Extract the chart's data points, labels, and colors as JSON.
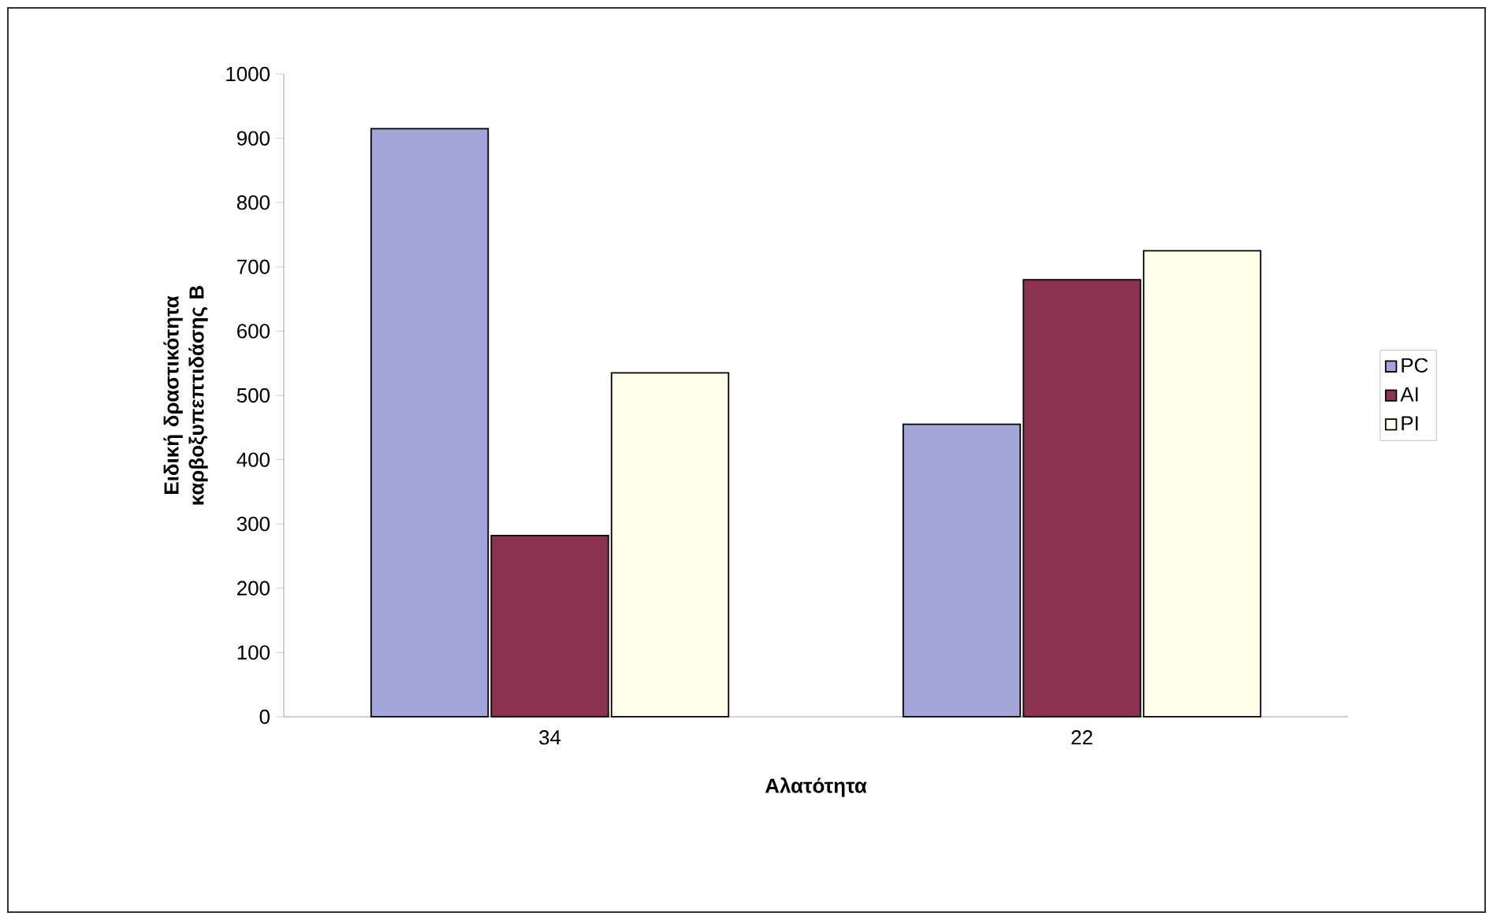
{
  "chart_data": {
    "type": "bar",
    "xlabel": "Αλατότητα",
    "ylabel": "Ειδική δραστικότητα καρβοξυπεπτιδάσης Β",
    "categories": [
      "34",
      "22"
    ],
    "series": [
      {
        "name": "PC",
        "color": "#a2a6d8",
        "values": [
          915,
          455
        ]
      },
      {
        "name": "AI",
        "color": "#8c3352",
        "values": [
          282,
          680
        ]
      },
      {
        "name": "PI",
        "color": "#ffffea",
        "values": [
          535,
          725
        ]
      }
    ],
    "ylim": [
      0,
      1000
    ],
    "yticks": [
      0,
      100,
      200,
      300,
      400,
      500,
      600,
      700,
      800,
      900,
      1000
    ],
    "grid": false,
    "legend": "right"
  }
}
